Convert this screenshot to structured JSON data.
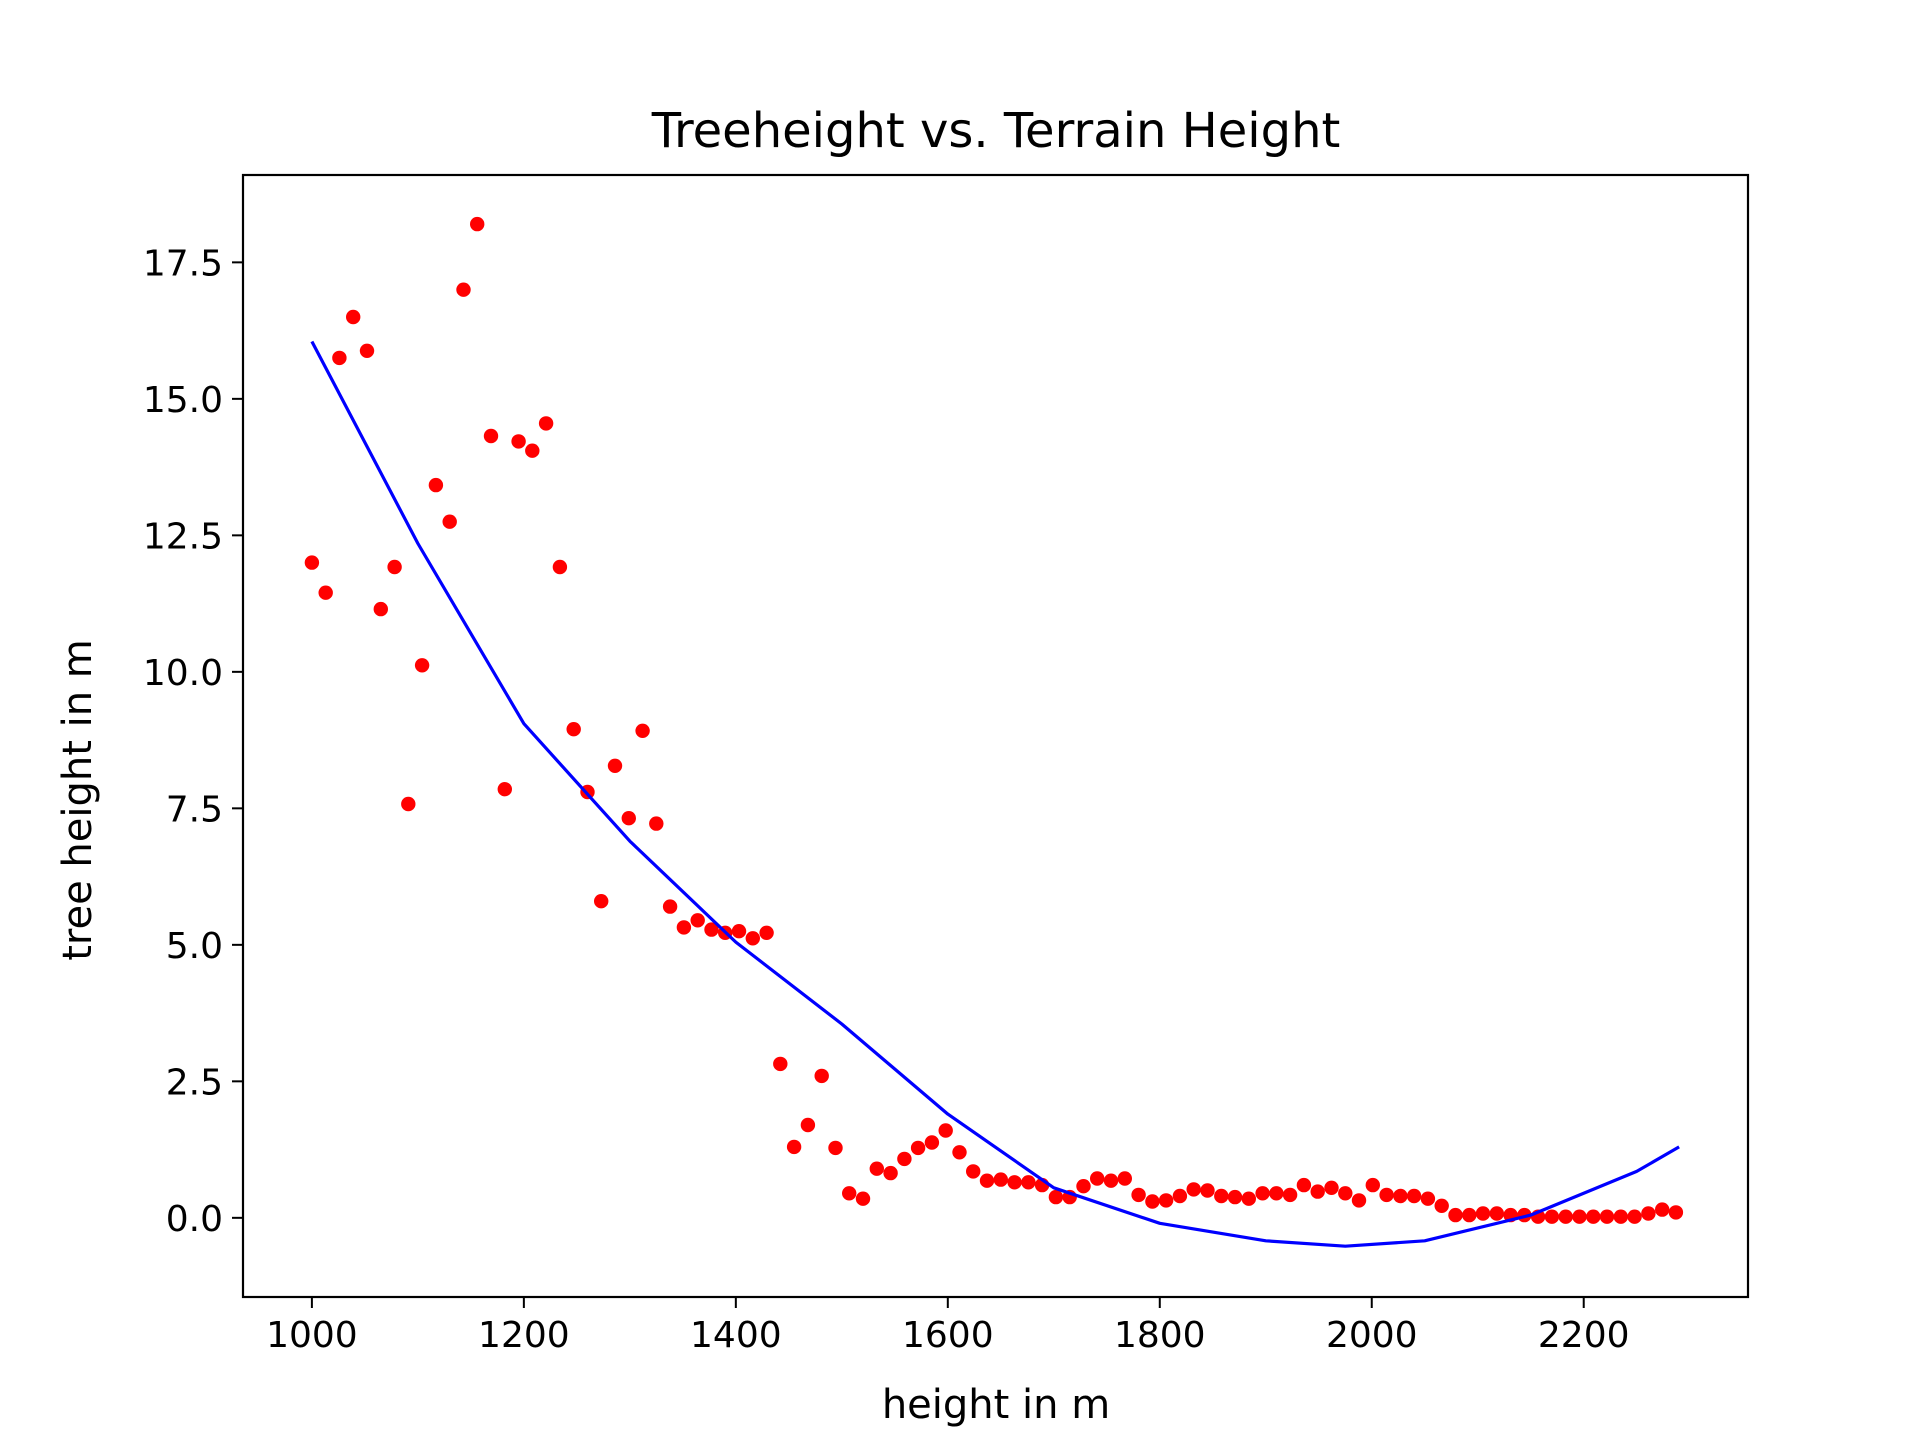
{
  "chart_data": {
    "type": "scatter",
    "title": "Treeheight vs. Terrain Height",
    "xlabel": "height in m",
    "ylabel": "tree height in m",
    "xlim": [
      935,
      2355
    ],
    "ylim": [
      -1.45,
      19.1
    ],
    "xticks": [
      1000,
      1200,
      1400,
      1600,
      1800,
      2000,
      2200
    ],
    "xtick_labels": [
      "1000",
      "1200",
      "1400",
      "1600",
      "1800",
      "2000",
      "2200"
    ],
    "yticks": [
      0.0,
      2.5,
      5.0,
      7.5,
      10.0,
      12.5,
      15.0,
      17.5
    ],
    "ytick_labels": [
      "0.0",
      "2.5",
      "5.0",
      "7.5",
      "10.0",
      "12.5",
      "15.0",
      "17.5"
    ],
    "grid": false,
    "colors": {
      "points": "#ff0000",
      "fit": "#0000ff",
      "axes": "#000000"
    },
    "series": [
      {
        "kind": "scatter",
        "x": [
          1000,
          1013,
          1026,
          1039,
          1052,
          1065,
          1078,
          1091,
          1104,
          1117,
          1130,
          1143,
          1156,
          1169,
          1182,
          1195,
          1208,
          1221,
          1234,
          1247,
          1260,
          1273,
          1286,
          1299,
          1312,
          1325,
          1338,
          1351,
          1364,
          1377,
          1390,
          1403,
          1416,
          1429,
          1442,
          1455,
          1468,
          1481,
          1494,
          1507,
          1520,
          1533,
          1546,
          1559,
          1572,
          1585,
          1598,
          1611,
          1624,
          1637,
          1650,
          1663,
          1676,
          1689,
          1702,
          1715,
          1728,
          1741,
          1754,
          1767,
          1780,
          1793,
          1806,
          1819,
          1832,
          1845,
          1858,
          1871,
          1884,
          1897,
          1910,
          1923,
          1936,
          1949,
          1962,
          1975,
          1988,
          2001,
          2014,
          2027,
          2040,
          2053,
          2066,
          2079,
          2092,
          2105,
          2118,
          2131,
          2144,
          2157,
          2170,
          2183,
          2196,
          2209,
          2222,
          2235,
          2248,
          2261,
          2274,
          2287
        ],
        "y": [
          12.0,
          11.45,
          15.75,
          16.5,
          15.88,
          11.15,
          11.92,
          7.58,
          10.12,
          13.42,
          12.75,
          17.0,
          18.2,
          14.32,
          7.85,
          14.22,
          14.05,
          14.55,
          11.92,
          8.95,
          7.8,
          5.8,
          8.28,
          7.32,
          8.92,
          7.22,
          5.7,
          5.32,
          5.45,
          5.28,
          5.22,
          5.25,
          5.12,
          5.22,
          2.82,
          1.3,
          1.7,
          2.6,
          1.28,
          0.45,
          0.35,
          0.9,
          0.82,
          1.08,
          1.28,
          1.38,
          1.6,
          1.2,
          0.85,
          0.68,
          0.7,
          0.65,
          0.65,
          0.6,
          0.38,
          0.38,
          0.58,
          0.72,
          0.68,
          0.72,
          0.42,
          0.3,
          0.32,
          0.4,
          0.52,
          0.5,
          0.4,
          0.38,
          0.35,
          0.45,
          0.45,
          0.42,
          0.6,
          0.48,
          0.55,
          0.45,
          0.32,
          0.6,
          0.42,
          0.4,
          0.4,
          0.35,
          0.22,
          0.05,
          0.05,
          0.08,
          0.08,
          0.05,
          0.05,
          0.02,
          0.02,
          0.02,
          0.02,
          0.02,
          0.02,
          0.02,
          0.02,
          0.08,
          0.15,
          0.1
        ]
      },
      {
        "kind": "line",
        "x": [
          1000,
          1100,
          1200,
          1300,
          1400,
          1500,
          1600,
          1700,
          1800,
          1900,
          1975,
          2050,
          2150,
          2250,
          2290
        ],
        "y": [
          16.05,
          12.35,
          9.05,
          6.9,
          5.05,
          3.55,
          1.9,
          0.55,
          -0.1,
          -0.42,
          -0.52,
          -0.42,
          0.05,
          0.85,
          1.3
        ]
      }
    ]
  }
}
